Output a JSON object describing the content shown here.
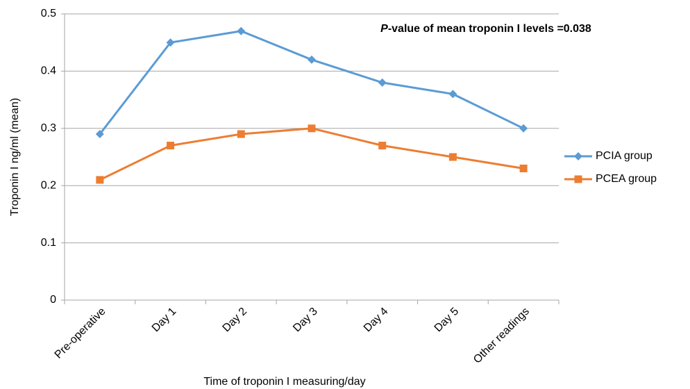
{
  "chart_data": {
    "type": "line",
    "annotation": "P-value of mean troponin I levels =0.038",
    "x_label": "Time of troponin I measuring/day",
    "y_label": "Troponin I ng/ml (mean)",
    "categories": [
      "Pre-operative",
      "Day 1",
      "Day 2",
      "Day 3",
      "Day 4",
      "Day 5",
      "Other readings"
    ],
    "series": [
      {
        "name": "PCIA group",
        "color": "#5b9bd5",
        "marker": "diamond",
        "values": [
          0.29,
          0.45,
          0.47,
          0.42,
          0.38,
          0.36,
          0.3
        ]
      },
      {
        "name": "PCEA group",
        "color": "#ed7d31",
        "marker": "square",
        "values": [
          0.21,
          0.27,
          0.29,
          0.3,
          0.27,
          0.25,
          0.23
        ]
      }
    ],
    "ylim": [
      0,
      0.5
    ],
    "yticks": [
      0,
      0.1,
      0.2,
      0.3,
      0.4,
      0.5
    ],
    "grid": true,
    "legend": "right"
  }
}
